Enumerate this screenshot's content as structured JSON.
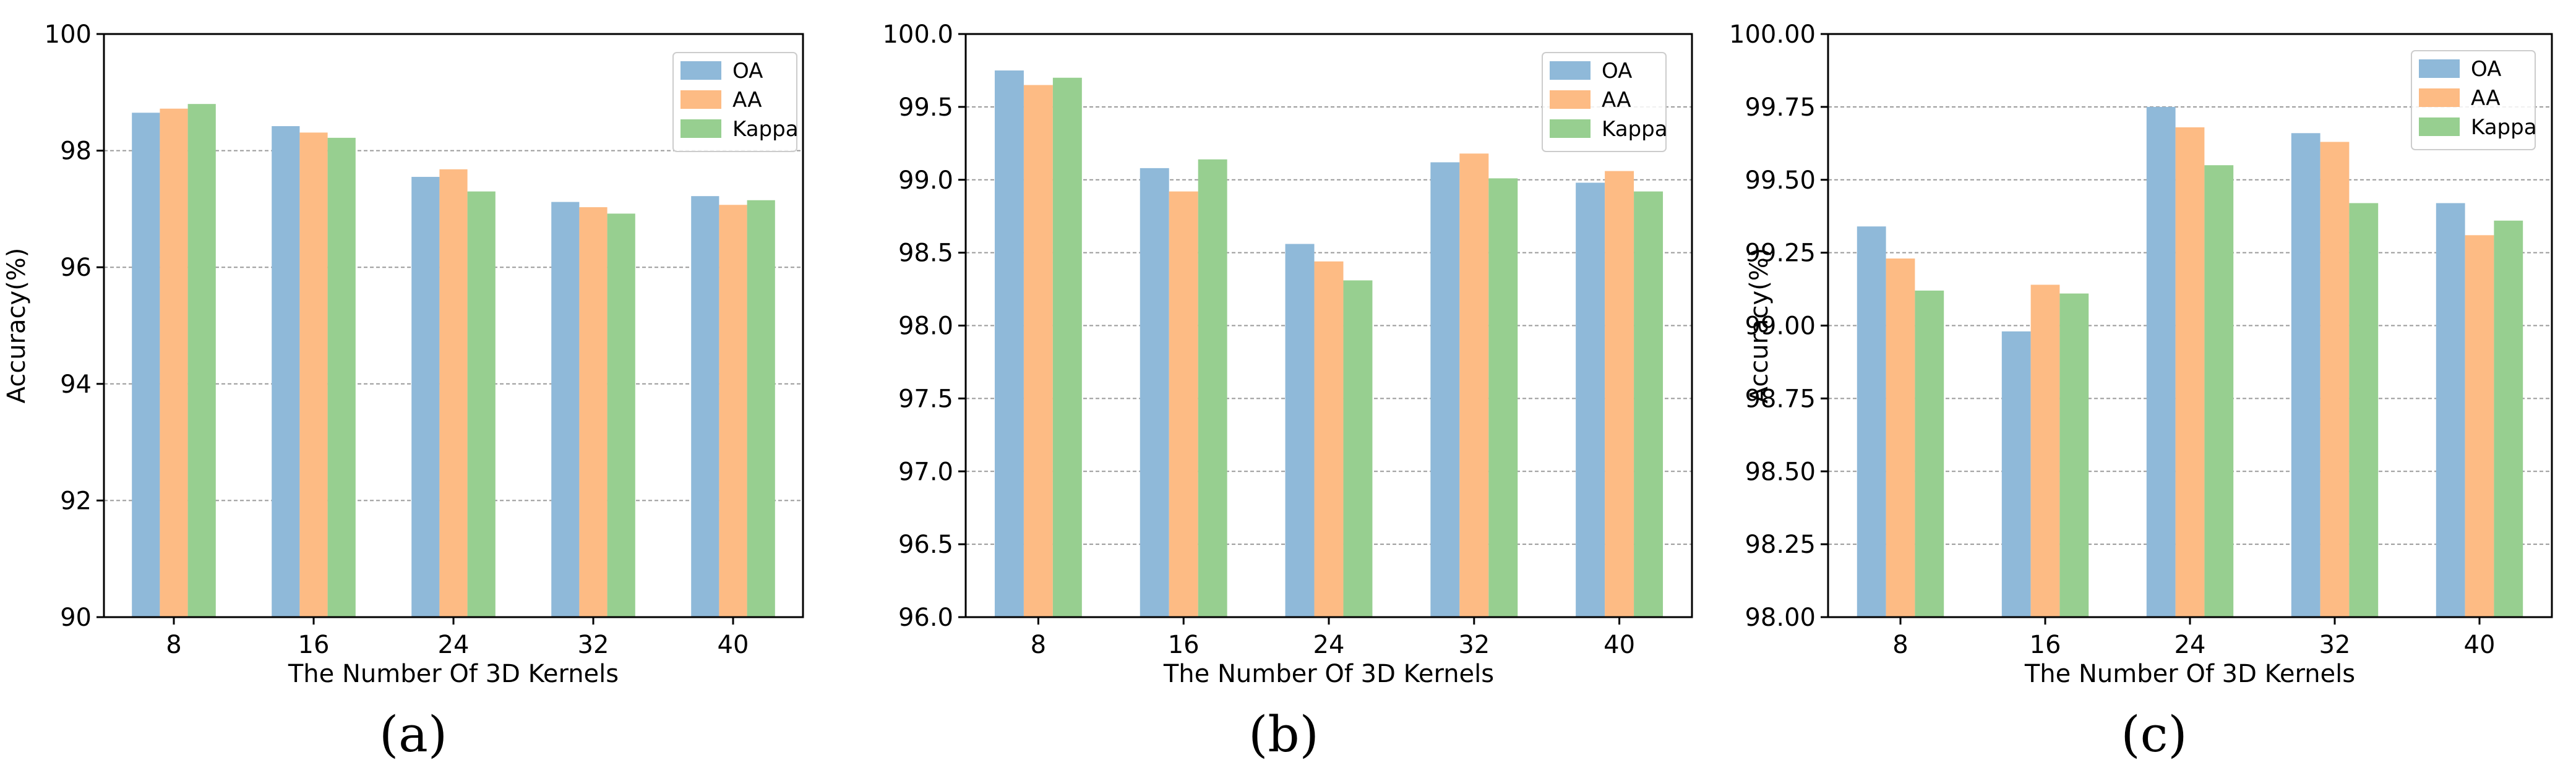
{
  "figure": {
    "captions": [
      "(a)",
      "(b)",
      "(c)"
    ]
  },
  "colors": {
    "OA": "#8fb9d9",
    "AA": "#fdbb84",
    "Kappa": "#97cf90",
    "grid": "#9a9a9a"
  },
  "chart_data": [
    {
      "type": "bar",
      "panel": "(a)",
      "categories": [
        "8",
        "16",
        "24",
        "32",
        "40"
      ],
      "series": [
        {
          "name": "OA",
          "values": [
            98.65,
            98.42,
            97.55,
            97.12,
            97.22
          ]
        },
        {
          "name": "AA",
          "values": [
            98.72,
            98.31,
            97.68,
            97.03,
            97.07
          ]
        },
        {
          "name": "Kappa",
          "values": [
            98.8,
            98.22,
            97.3,
            96.92,
            97.15
          ]
        }
      ],
      "xlabel": "The Number Of 3D Kernels",
      "ylabel": "Accuracy(%)",
      "ylim": [
        90,
        100
      ],
      "yticks": [
        "90",
        "92",
        "94",
        "96",
        "98",
        "100"
      ],
      "grid": true,
      "legend": "top-right"
    },
    {
      "type": "bar",
      "panel": "(b)",
      "categories": [
        "8",
        "16",
        "24",
        "32",
        "40"
      ],
      "series": [
        {
          "name": "OA",
          "values": [
            99.75,
            99.08,
            98.56,
            99.12,
            98.98
          ]
        },
        {
          "name": "AA",
          "values": [
            99.65,
            98.92,
            98.44,
            99.18,
            99.06
          ]
        },
        {
          "name": "Kappa",
          "values": [
            99.7,
            99.14,
            98.31,
            99.01,
            98.92
          ]
        }
      ],
      "xlabel": "The Number Of 3D Kernels",
      "ylabel": "",
      "ylim": [
        96,
        100
      ],
      "yticks": [
        "96.0",
        "96.5",
        "97.0",
        "97.5",
        "98.0",
        "98.5",
        "99.0",
        "99.5",
        "100.0"
      ],
      "grid": true,
      "legend": "top-right"
    },
    {
      "type": "bar",
      "panel": "(c)",
      "categories": [
        "8",
        "16",
        "24",
        "32",
        "40"
      ],
      "series": [
        {
          "name": "OA",
          "values": [
            99.34,
            98.98,
            99.75,
            99.66,
            99.42
          ]
        },
        {
          "name": "AA",
          "values": [
            99.23,
            99.14,
            99.68,
            99.63,
            99.31
          ]
        },
        {
          "name": "Kappa",
          "values": [
            99.12,
            99.11,
            99.55,
            99.42,
            99.36
          ]
        }
      ],
      "xlabel": "The Number Of 3D Kernels",
      "ylabel": "Accuracy(%)",
      "ylim": [
        98,
        100
      ],
      "yticks": [
        "98.00",
        "98.25",
        "98.50",
        "98.75",
        "99.00",
        "99.25",
        "99.50",
        "99.75",
        "100.00"
      ],
      "grid": true,
      "legend": "top-right"
    }
  ]
}
